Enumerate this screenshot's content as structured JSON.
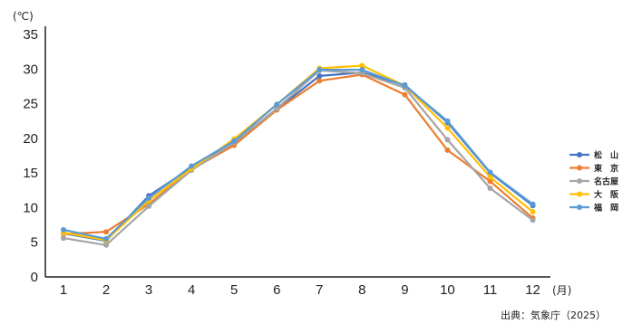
{
  "chart_data": {
    "type": "line",
    "y_unit": "(℃)",
    "x_unit": "(月)",
    "source": "出典：気象庁（2025）",
    "categories": [
      "1",
      "2",
      "3",
      "4",
      "5",
      "6",
      "7",
      "8",
      "9",
      "10",
      "11",
      "12"
    ],
    "ylim": [
      0,
      35
    ],
    "yticks": [
      0,
      5,
      10,
      15,
      20,
      25,
      30,
      35
    ],
    "grid": false,
    "legend_position": "right",
    "series": [
      {
        "name": "松　山",
        "color": "#4472c4",
        "values": [
          6.3,
          5.2,
          11.7,
          15.8,
          19.3,
          24.2,
          29.0,
          29.5,
          27.7,
          22.3,
          15.0,
          10.3
        ]
      },
      {
        "name": "東　京",
        "color": "#ed7d31",
        "values": [
          6.2,
          6.5,
          10.5,
          15.5,
          19.0,
          24.1,
          28.3,
          29.2,
          26.3,
          18.3,
          13.8,
          8.5
        ]
      },
      {
        "name": "名古屋",
        "color": "#a5a5a5",
        "values": [
          5.6,
          4.6,
          10.2,
          15.4,
          19.4,
          24.3,
          29.8,
          29.4,
          27.3,
          19.8,
          12.8,
          8.2
        ]
      },
      {
        "name": "大　阪",
        "color": "#ffc000",
        "values": [
          6.4,
          5.3,
          11.0,
          15.6,
          19.9,
          24.9,
          30.1,
          30.5,
          27.6,
          21.5,
          14.4,
          9.4
        ]
      },
      {
        "name": "福　岡",
        "color": "#5b9bd5",
        "values": [
          6.8,
          5.5,
          11.4,
          16.0,
          19.6,
          24.9,
          29.9,
          29.9,
          27.6,
          22.5,
          15.1,
          10.5
        ]
      }
    ]
  }
}
